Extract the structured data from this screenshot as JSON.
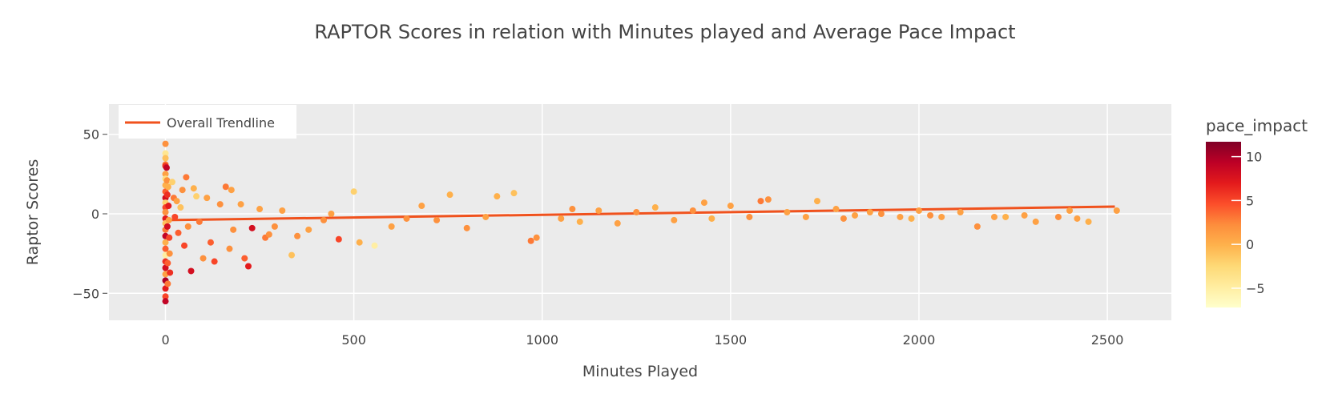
{
  "chart_data": {
    "type": "scatter",
    "title": "RAPTOR Scores in relation with Minutes played and Average Pace Impact",
    "xlabel": "Minutes Played",
    "ylabel": "Raptor Scores",
    "xlim": [
      -150,
      2670
    ],
    "ylim": [
      -67,
      69
    ],
    "x_ticks": [
      0,
      500,
      1000,
      1500,
      2000,
      2500
    ],
    "y_ticks": [
      -50,
      0,
      50
    ],
    "grid": true,
    "legend": {
      "placement": "top-left",
      "entries": [
        "Overall Trendline"
      ]
    },
    "trendline": {
      "name": "Overall Trendline",
      "x": [
        0,
        2520
      ],
      "y": [
        -4,
        4.5
      ],
      "color": "#f0521d"
    },
    "colorbar": {
      "title": "pace_impact",
      "range": [
        -7.2,
        11.7
      ],
      "ticks": [
        -5,
        0,
        5,
        10
      ],
      "colorscale": [
        "#ffffcc",
        "#ffeda0",
        "#fed976",
        "#feb24c",
        "#fd8d3c",
        "#fc4e2a",
        "#e31a1c",
        "#bd0026",
        "#800026"
      ]
    },
    "series": [
      {
        "points": [
          [
            0,
            44,
            2
          ],
          [
            0,
            38,
            -4
          ],
          [
            0,
            35,
            -1
          ],
          [
            0,
            31,
            3
          ],
          [
            0,
            30,
            6
          ],
          [
            0,
            25,
            1
          ],
          [
            0,
            22,
            -3
          ],
          [
            0,
            18,
            0
          ],
          [
            0,
            14,
            4
          ],
          [
            0,
            10,
            8
          ],
          [
            0,
            7,
            -2
          ],
          [
            0,
            4,
            5
          ],
          [
            0,
            1,
            2
          ],
          [
            0,
            -3,
            7
          ],
          [
            0,
            -6,
            -1
          ],
          [
            0,
            -10,
            3
          ],
          [
            0,
            -14,
            9
          ],
          [
            0,
            -18,
            0
          ],
          [
            0,
            -22,
            4
          ],
          [
            0,
            -26,
            -5
          ],
          [
            0,
            -30,
            6
          ],
          [
            0,
            -34,
            8
          ],
          [
            0,
            -38,
            1
          ],
          [
            0,
            -42,
            10
          ],
          [
            0,
            -47,
            7
          ],
          [
            0,
            -52,
            5
          ],
          [
            0,
            -55,
            9
          ],
          [
            3,
            29,
            9
          ],
          [
            4,
            21,
            2
          ],
          [
            5,
            12,
            6
          ],
          [
            5,
            -8,
            8
          ],
          [
            6,
            -31,
            4
          ],
          [
            6,
            -44,
            3
          ],
          [
            7,
            17,
            0
          ],
          [
            8,
            5,
            7
          ],
          [
            9,
            -4,
            1
          ],
          [
            10,
            -15,
            5
          ],
          [
            11,
            -25,
            2
          ],
          [
            12,
            -37,
            6
          ],
          [
            18,
            20,
            -2
          ],
          [
            22,
            10,
            3
          ],
          [
            25,
            -2,
            5
          ],
          [
            30,
            8,
            1
          ],
          [
            34,
            -12,
            4
          ],
          [
            40,
            4,
            -1
          ],
          [
            45,
            15,
            2
          ],
          [
            50,
            -20,
            5
          ],
          [
            55,
            23,
            3
          ],
          [
            60,
            -8,
            2
          ],
          [
            68,
            -36,
            8
          ],
          [
            75,
            16,
            0
          ],
          [
            82,
            11,
            -2
          ],
          [
            90,
            -5,
            3
          ],
          [
            100,
            -28,
            2
          ],
          [
            110,
            10,
            1
          ],
          [
            120,
            -18,
            4
          ],
          [
            130,
            -30,
            5
          ],
          [
            145,
            6,
            2
          ],
          [
            160,
            17,
            3
          ],
          [
            170,
            -22,
            2
          ],
          [
            175,
            15,
            1
          ],
          [
            180,
            -10,
            2
          ],
          [
            200,
            6,
            1
          ],
          [
            210,
            -28,
            4
          ],
          [
            220,
            -33,
            7
          ],
          [
            230,
            -9,
            8
          ],
          [
            250,
            3,
            1
          ],
          [
            265,
            -15,
            3
          ],
          [
            275,
            -13,
            2
          ],
          [
            290,
            -8,
            2
          ],
          [
            310,
            2,
            1
          ],
          [
            335,
            -26,
            -1
          ],
          [
            350,
            -14,
            2
          ],
          [
            380,
            -10,
            1
          ],
          [
            420,
            -4,
            2
          ],
          [
            440,
            0,
            1
          ],
          [
            460,
            -16,
            5
          ],
          [
            500,
            14,
            -2
          ],
          [
            515,
            -18,
            0
          ],
          [
            555,
            -20,
            -5
          ],
          [
            600,
            -8,
            1
          ],
          [
            640,
            -3,
            2
          ],
          [
            680,
            5,
            1
          ],
          [
            720,
            -4,
            2
          ],
          [
            755,
            12,
            0
          ],
          [
            800,
            -9,
            2
          ],
          [
            850,
            -2,
            1
          ],
          [
            880,
            11,
            0
          ],
          [
            925,
            13,
            -1
          ],
          [
            970,
            -17,
            3
          ],
          [
            985,
            -15,
            2
          ],
          [
            1050,
            -3,
            1
          ],
          [
            1080,
            3,
            2
          ],
          [
            1100,
            -5,
            0
          ],
          [
            1150,
            2,
            1
          ],
          [
            1200,
            -6,
            1
          ],
          [
            1250,
            1,
            2
          ],
          [
            1300,
            4,
            0
          ],
          [
            1350,
            -4,
            1
          ],
          [
            1400,
            2,
            2
          ],
          [
            1430,
            7,
            1
          ],
          [
            1450,
            -3,
            0
          ],
          [
            1500,
            5,
            1
          ],
          [
            1550,
            -2,
            2
          ],
          [
            1580,
            8,
            3
          ],
          [
            1600,
            9,
            2
          ],
          [
            1650,
            1,
            1
          ],
          [
            1700,
            -2,
            1
          ],
          [
            1730,
            8,
            0
          ],
          [
            1780,
            3,
            1
          ],
          [
            1800,
            -3,
            2
          ],
          [
            1830,
            -1,
            1
          ],
          [
            1870,
            1,
            1
          ],
          [
            1900,
            0,
            2
          ],
          [
            1950,
            -2,
            1
          ],
          [
            1980,
            -3,
            0
          ],
          [
            2000,
            2,
            1
          ],
          [
            2030,
            -1,
            2
          ],
          [
            2060,
            -2,
            1
          ],
          [
            2110,
            1,
            1
          ],
          [
            2155,
            -8,
            2
          ],
          [
            2200,
            -2,
            1
          ],
          [
            2230,
            -2,
            0
          ],
          [
            2280,
            -1,
            1
          ],
          [
            2310,
            -5,
            1
          ],
          [
            2370,
            -2,
            2
          ],
          [
            2400,
            2,
            1
          ],
          [
            2420,
            -3,
            1
          ],
          [
            2450,
            -5,
            0
          ],
          [
            2525,
            2,
            1
          ]
        ]
      }
    ]
  }
}
